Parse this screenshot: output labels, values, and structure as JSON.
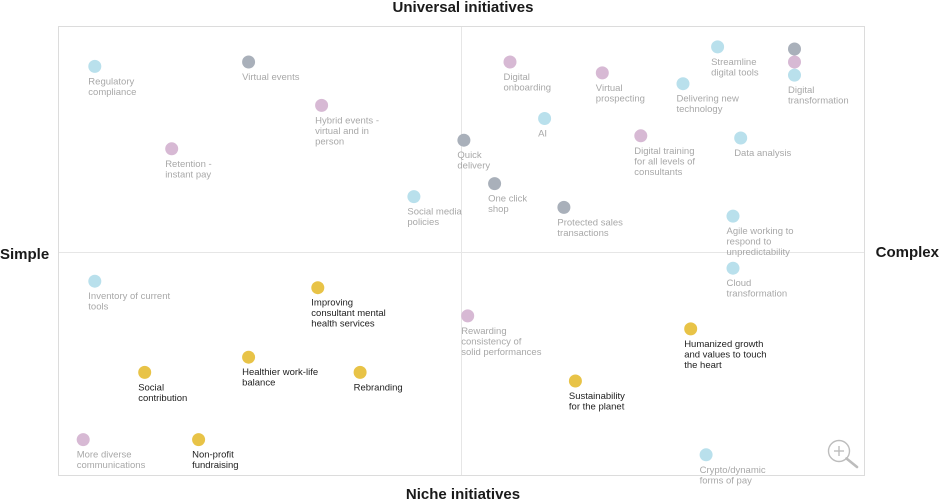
{
  "chart_data": {
    "type": "scatter",
    "title": "",
    "quadrant_labels": {
      "top": "Universal initiatives",
      "bottom": "Niche initiatives",
      "left": "Simple",
      "right": "Complex"
    },
    "xlim": [
      0,
      100
    ],
    "ylim": [
      0,
      100
    ],
    "grid": "quadrant midlines",
    "colors": {
      "light_blue": "#b9e0ec",
      "lilac": "#d7b9d4",
      "gray": "#a9b0ba",
      "yellow": "#e8c347",
      "muted_text": "#a8a8a8",
      "dark_text": "#222222",
      "border": "#dcdcdc"
    },
    "points": [
      {
        "label": "Regulatory compliance",
        "lines": [
          "Regulatory",
          "compliance"
        ],
        "x": 4,
        "y": 93,
        "color": "light_blue",
        "highlight": false
      },
      {
        "label": "Virtual events",
        "lines": [
          "Virtual events"
        ],
        "x": 24,
        "y": 94,
        "color": "gray",
        "highlight": false
      },
      {
        "label": "Hybrid events - virtual and in person",
        "lines": [
          "Hybrid events -",
          "virtual and in",
          "person"
        ],
        "x": 33.5,
        "y": 84,
        "color": "lilac",
        "highlight": false
      },
      {
        "label": "Retention - instant pay",
        "lines": [
          "Retention -",
          "instant pay"
        ],
        "x": 14,
        "y": 74,
        "color": "lilac",
        "highlight": false
      },
      {
        "label": "Social media policies",
        "lines": [
          "Social media",
          "policies"
        ],
        "x": 45.5,
        "y": 63,
        "color": "light_blue",
        "highlight": false
      },
      {
        "label": "Digital onboarding",
        "lines": [
          "Digital",
          "onboarding"
        ],
        "x": 58,
        "y": 94,
        "color": "lilac",
        "highlight": false
      },
      {
        "label": "Virtual prospecting",
        "lines": [
          "Virtual",
          "prospecting"
        ],
        "x": 70,
        "y": 91.5,
        "color": "lilac",
        "highlight": false
      },
      {
        "label": "Streamline digital tools",
        "lines": [
          "Streamline",
          "digital tools"
        ],
        "x": 85,
        "y": 97.5,
        "color": "light_blue",
        "highlight": false
      },
      {
        "label": "Delivering new technology",
        "lines": [
          "Delivering new",
          "technology"
        ],
        "x": 80.5,
        "y": 89,
        "color": "light_blue",
        "highlight": false
      },
      {
        "label": "Digital transformation",
        "lines": [
          "Digital",
          "transformation"
        ],
        "x": 95,
        "y": 91,
        "color": "light_blue",
        "highlight": false
      },
      {
        "label": "Digital transformation (gray marker)",
        "lines": [],
        "x": 95,
        "y": 97,
        "color": "gray",
        "highlight": false
      },
      {
        "label": "Digital transformation (lilac marker)",
        "lines": [],
        "x": 95,
        "y": 94,
        "color": "lilac",
        "highlight": false
      },
      {
        "label": "Quick delivery",
        "lines": [
          "Quick",
          "delivery"
        ],
        "x": 52,
        "y": 76,
        "color": "gray",
        "highlight": false
      },
      {
        "label": "AI",
        "lines": [
          "AI"
        ],
        "x": 62.5,
        "y": 81,
        "color": "light_blue",
        "highlight": false
      },
      {
        "label": "Digital training for all levels of consultants",
        "lines": [
          "Digital training",
          "for all levels of",
          "consultants"
        ],
        "x": 75,
        "y": 77,
        "color": "lilac",
        "highlight": false
      },
      {
        "label": "Data analysis",
        "lines": [
          "Data analysis"
        ],
        "x": 88,
        "y": 76.5,
        "color": "light_blue",
        "highlight": false
      },
      {
        "label": "One click shop",
        "lines": [
          "One click",
          "shop"
        ],
        "x": 56,
        "y": 66,
        "color": "gray",
        "highlight": false
      },
      {
        "label": "Protected sales transactions",
        "lines": [
          "Protected sales",
          "transactions"
        ],
        "x": 65,
        "y": 60.5,
        "color": "gray",
        "highlight": false
      },
      {
        "label": "Agile working to respond to unpredictability",
        "lines": [
          "Agile working to",
          "respond to",
          "unpredictability"
        ],
        "x": 87,
        "y": 58.5,
        "color": "light_blue",
        "highlight": false
      },
      {
        "label": "Inventory of current tools",
        "lines": [
          "Inventory of current",
          "tools"
        ],
        "x": 4,
        "y": 43.5,
        "color": "light_blue",
        "highlight": false
      },
      {
        "label": "Improving consultant mental health services",
        "lines": [
          "Improving",
          "consultant mental",
          "health services"
        ],
        "x": 33,
        "y": 42,
        "color": "yellow",
        "highlight": true
      },
      {
        "label": "Rewarding consistency of solid performances",
        "lines": [
          "Rewarding",
          "consistency of",
          "solid performances"
        ],
        "x": 52.5,
        "y": 35.5,
        "color": "lilac",
        "highlight": false
      },
      {
        "label": "Cloud transformation",
        "lines": [
          "Cloud",
          "transformation"
        ],
        "x": 87,
        "y": 46.5,
        "color": "light_blue",
        "highlight": false
      },
      {
        "label": "Humanized growth and values to touch the heart",
        "lines": [
          "Humanized growth",
          "and values to touch",
          "the heart"
        ],
        "x": 81.5,
        "y": 32.5,
        "color": "yellow",
        "highlight": true
      },
      {
        "label": "Healthier work-life balance",
        "lines": [
          "Healthier work-life",
          "balance"
        ],
        "x": 24,
        "y": 26,
        "color": "yellow",
        "highlight": true
      },
      {
        "label": "Social contribution",
        "lines": [
          "Social",
          "contribution"
        ],
        "x": 10.5,
        "y": 22.5,
        "color": "yellow",
        "highlight": true
      },
      {
        "label": "Rebranding",
        "lines": [
          "Rebranding"
        ],
        "x": 38.5,
        "y": 22.5,
        "color": "yellow",
        "highlight": true
      },
      {
        "label": "Sustainability for the planet",
        "lines": [
          "Sustainability",
          "for the planet"
        ],
        "x": 66.5,
        "y": 20.5,
        "color": "yellow",
        "highlight": true
      },
      {
        "label": "More diverse communications",
        "lines": [
          "More diverse",
          "communications"
        ],
        "x": 2.5,
        "y": 7,
        "color": "lilac",
        "highlight": false
      },
      {
        "label": "Non-profit fundraising",
        "lines": [
          "Non-profit",
          "fundraising"
        ],
        "x": 17.5,
        "y": 7,
        "color": "yellow",
        "highlight": true
      },
      {
        "label": "Crypto/dynamic forms of pay",
        "lines": [
          "Crypto/dynamic",
          "forms of pay"
        ],
        "x": 83.5,
        "y": 3.5,
        "color": "light_blue",
        "highlight": false
      }
    ]
  },
  "zoom_icon": "zoom-in-icon"
}
